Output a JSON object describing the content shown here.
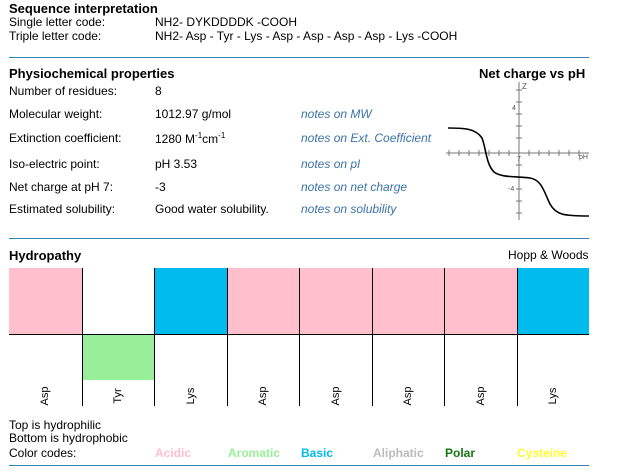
{
  "sequence": {
    "title": "Sequence interpretation",
    "single_label": "Single letter code:",
    "single_value": "NH2- DYKDDDDK -COOH",
    "triple_label": "Triple letter code:",
    "triple_value": "NH2- Asp - Tyr - Lys - Asp - Asp - Asp - Asp - Lys -COOH"
  },
  "physio": {
    "title": "Physiochemical properties",
    "rows": [
      {
        "label": "Number of residues:",
        "value": "8",
        "note": ""
      },
      {
        "label": "Molecular weight:",
        "value": "1012.97 g/mol",
        "note": "notes on MW"
      },
      {
        "label": "Extinction coefficient:",
        "value": "1280 M",
        "value_sup1": "-1",
        "value_mid": "cm",
        "value_sup2": "-1",
        "note": "notes on Ext. Coefficient"
      },
      {
        "label": "Iso-electric point:",
        "value": "pH 3.53",
        "note": "notes on pI"
      },
      {
        "label": "Net charge at pH 7:",
        "value": "-3",
        "note": "notes on net charge"
      },
      {
        "label": "Estimated solubility:",
        "value": "Good water solubility.",
        "note": "notes on solubility"
      }
    ]
  },
  "net_charge_chart": {
    "title": "Net charge vs pH",
    "y_axis_label": "Z",
    "x_axis_label": "pH",
    "y_ticks": [
      "4",
      "-4"
    ],
    "x_ticks": [
      "7"
    ]
  },
  "hydropathy": {
    "title": "Hydropathy",
    "scale": "Hopp & Woods",
    "residues": [
      {
        "name": "Asp",
        "class": "acidic",
        "side": "top"
      },
      {
        "name": "Tyr",
        "class": "aromatic",
        "side": "bottom"
      },
      {
        "name": "Lys",
        "class": "basic",
        "side": "top"
      },
      {
        "name": "Asp",
        "class": "acidic",
        "side": "top"
      },
      {
        "name": "Asp",
        "class": "acidic",
        "side": "top"
      },
      {
        "name": "Asp",
        "class": "acidic",
        "side": "top"
      },
      {
        "name": "Asp",
        "class": "acidic",
        "side": "top"
      },
      {
        "name": "Lys",
        "class": "basic",
        "side": "top"
      }
    ],
    "note_top": "Top is hydrophilic",
    "note_bottom": "Bottom is hydrophobic",
    "color_codes_label": "Color codes:",
    "legend": [
      {
        "label": "Acidic",
        "color": "#ffbfcc"
      },
      {
        "label": "Aromatic",
        "color": "#99ee99"
      },
      {
        "label": "Basic",
        "color": "#00bbee"
      },
      {
        "label": "Aliphatic",
        "color": "#bbbbbb"
      },
      {
        "label": "Polar",
        "color": "#117711"
      },
      {
        "label": "Cysteine",
        "color": "#ffff33"
      }
    ]
  },
  "colors": {
    "acidic": "#ffbfcc",
    "aromatic": "#99ee99",
    "basic": "#00bbee",
    "divider": "#2f86b5"
  }
}
